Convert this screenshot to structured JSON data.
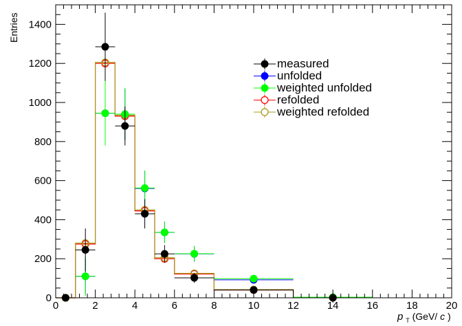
{
  "chart_data": {
    "type": "scatter",
    "title": "",
    "xlabel": "p_T (GeV/c)",
    "xlabel_var": "p",
    "xlabel_sub": "T",
    "xlabel_unit": " (GeV/",
    "xlabel_unit_c": "c",
    "xlabel_close": ")",
    "ylabel": "Entries",
    "xlim": [
      0,
      20
    ],
    "ylim": [
      0,
      1500
    ],
    "xticks": [
      0,
      2,
      4,
      6,
      8,
      10,
      12,
      14,
      16,
      18,
      20
    ],
    "yticks": [
      0,
      200,
      400,
      600,
      800,
      1000,
      1200,
      1400
    ],
    "legend_position": "top-right",
    "series": [
      {
        "name": "measured",
        "style": "marker",
        "marker": "filled-circle",
        "color": "#000000",
        "points": [
          {
            "xlo": 0,
            "xhi": 1,
            "x": 0.5,
            "y": 0,
            "err": 0
          },
          {
            "xlo": 1,
            "xhi": 2,
            "x": 1.5,
            "y": 245,
            "err": 110
          },
          {
            "xlo": 2,
            "xhi": 3,
            "x": 2.5,
            "y": 1285,
            "err": 175
          },
          {
            "xlo": 3,
            "xhi": 4,
            "x": 3.5,
            "y": 880,
            "err": 100
          },
          {
            "xlo": 4,
            "xhi": 5,
            "x": 4.5,
            "y": 430,
            "err": 75
          },
          {
            "xlo": 5,
            "xhi": 6,
            "x": 5.5,
            "y": 225,
            "err": 45
          },
          {
            "xlo": 6,
            "xhi": 8,
            "x": 7,
            "y": 102,
            "err": 25
          },
          {
            "xlo": 8,
            "xhi": 12,
            "x": 10,
            "y": 40,
            "err": 12
          },
          {
            "xlo": 12,
            "xhi": 16,
            "x": 14,
            "y": 0,
            "err": 25
          }
        ]
      },
      {
        "name": "unfolded",
        "style": "marker",
        "marker": "filled-circle",
        "color": "#0000ff",
        "points": [
          {
            "xlo": 1,
            "xhi": 2,
            "x": 1.5,
            "y": 110,
            "err": 90
          },
          {
            "xlo": 2,
            "xhi": 3,
            "x": 2.5,
            "y": 945,
            "err": 160
          },
          {
            "xlo": 3,
            "xhi": 4,
            "x": 3.5,
            "y": 940,
            "err": 130
          },
          {
            "xlo": 4,
            "xhi": 5,
            "x": 4.5,
            "y": 560,
            "err": 90
          },
          {
            "xlo": 5,
            "xhi": 6,
            "x": 5.5,
            "y": 335,
            "err": 55
          },
          {
            "xlo": 6,
            "xhi": 8,
            "x": 7,
            "y": 225,
            "err": 40
          },
          {
            "xlo": 8,
            "xhi": 12,
            "x": 10,
            "y": 92,
            "err": 15
          }
        ]
      },
      {
        "name": "weighted unfolded",
        "style": "marker",
        "marker": "filled-circle",
        "color": "#00ff00",
        "points": [
          {
            "xlo": 0,
            "xhi": 1,
            "x": 0.5,
            "y": 0,
            "err": 0
          },
          {
            "xlo": 1,
            "xhi": 2,
            "x": 1.5,
            "y": 110,
            "err": 100
          },
          {
            "xlo": 2,
            "xhi": 3,
            "x": 2.5,
            "y": 945,
            "err": 165
          },
          {
            "xlo": 3,
            "xhi": 4,
            "x": 3.5,
            "y": 940,
            "err": 135
          },
          {
            "xlo": 4,
            "xhi": 5,
            "x": 4.5,
            "y": 562,
            "err": 90
          },
          {
            "xlo": 5,
            "xhi": 6,
            "x": 5.5,
            "y": 335,
            "err": 55
          },
          {
            "xlo": 6,
            "xhi": 8,
            "x": 7,
            "y": 226,
            "err": 40
          },
          {
            "xlo": 8,
            "xhi": 12,
            "x": 10,
            "y": 98,
            "err": 15
          },
          {
            "xlo": 12,
            "xhi": 16,
            "x": 14,
            "y": 3,
            "err": 5
          }
        ]
      },
      {
        "name": "refolded",
        "style": "step",
        "marker": "open-circle",
        "color": "#ff0000",
        "points": [
          {
            "xlo": 0,
            "xhi": 1,
            "x": 0.5,
            "y": 0
          },
          {
            "xlo": 1,
            "xhi": 2,
            "x": 1.5,
            "y": 275
          },
          {
            "xlo": 2,
            "xhi": 3,
            "x": 2.5,
            "y": 1200
          },
          {
            "xlo": 3,
            "xhi": 4,
            "x": 3.5,
            "y": 930
          },
          {
            "xlo": 4,
            "xhi": 5,
            "x": 4.5,
            "y": 445
          },
          {
            "xlo": 5,
            "xhi": 6,
            "x": 5.5,
            "y": 200
          },
          {
            "xlo": 6,
            "xhi": 8,
            "x": 7,
            "y": 122
          },
          {
            "xlo": 8,
            "xhi": 12,
            "x": 10,
            "y": 40
          },
          {
            "xlo": 12,
            "xhi": 16,
            "x": 14,
            "y": 1
          }
        ]
      },
      {
        "name": "weighted refolded",
        "style": "step",
        "marker": "open-circle",
        "color": "#a89a1a",
        "points": [
          {
            "xlo": 0,
            "xhi": 1,
            "x": 0.5,
            "y": 0
          },
          {
            "xlo": 1,
            "xhi": 2,
            "x": 1.5,
            "y": 280
          },
          {
            "xlo": 2,
            "xhi": 3,
            "x": 2.5,
            "y": 1205
          },
          {
            "xlo": 3,
            "xhi": 4,
            "x": 3.5,
            "y": 935
          },
          {
            "xlo": 4,
            "xhi": 5,
            "x": 4.5,
            "y": 450
          },
          {
            "xlo": 5,
            "xhi": 6,
            "x": 5.5,
            "y": 205
          },
          {
            "xlo": 6,
            "xhi": 8,
            "x": 7,
            "y": 125
          },
          {
            "xlo": 8,
            "xhi": 12,
            "x": 10,
            "y": 42
          },
          {
            "xlo": 12,
            "xhi": 16,
            "x": 14,
            "y": 1
          }
        ]
      }
    ]
  }
}
